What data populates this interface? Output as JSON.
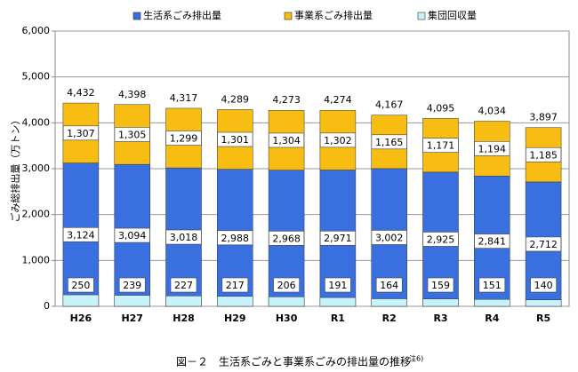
{
  "chart_data": {
    "type": "bar",
    "ylabel": "ごみ総排出量（万トン）",
    "caption": "図－２　生活系ごみと事業系ごみの排出量の推移",
    "note": "注6)",
    "categories": [
      "H26",
      "H27",
      "H28",
      "H29",
      "H30",
      "R1",
      "R2",
      "R3",
      "R4",
      "R5"
    ],
    "series": [
      {
        "name": "生活系ごみ排出量",
        "color": "#3a6fe0",
        "values": [
          3124,
          3094,
          3018,
          2988,
          2968,
          2971,
          3002,
          2925,
          2841,
          2712
        ],
        "value_labels": [
          "3,124",
          "3,094",
          "3,018",
          "2,988",
          "2,968",
          "2,971",
          "3,002",
          "2,925",
          "2,841",
          "2,712"
        ]
      },
      {
        "name": "事業系ごみ排出量",
        "color": "#f7bd12",
        "values": [
          1307,
          1305,
          1299,
          1301,
          1304,
          1302,
          1165,
          1171,
          1194,
          1185
        ],
        "value_labels": [
          "1,307",
          "1,305",
          "1,299",
          "1,301",
          "1,304",
          "1,302",
          "1,165",
          "1,171",
          "1,194",
          "1,185"
        ]
      },
      {
        "name": "集団回収量",
        "color": "#c9f3fb",
        "values": [
          250,
          239,
          227,
          217,
          206,
          191,
          164,
          159,
          151,
          140
        ]
      }
    ],
    "totals": {
      "values": [
        4432,
        4398,
        4317,
        4289,
        4273,
        4274,
        4167,
        4095,
        4034,
        3897
      ],
      "value_labels": [
        "4,432",
        "4,398",
        "4,317",
        "4,289",
        "4,273",
        "4,274",
        "4,167",
        "4,095",
        "4,034",
        "3,897"
      ]
    },
    "ylim": [
      0,
      6000
    ],
    "yticks": [
      0,
      {
        "value": 1000,
        "label": "1,000"
      },
      {
        "value": 2000,
        "label": "2,000"
      },
      {
        "value": 3000,
        "label": "3,000"
      },
      {
        "value": 4000,
        "label": "4,000"
      },
      {
        "value": 5000,
        "label": "5,000"
      },
      {
        "value": 6000,
        "label": "6,000"
      }
    ],
    "grid": true
  }
}
